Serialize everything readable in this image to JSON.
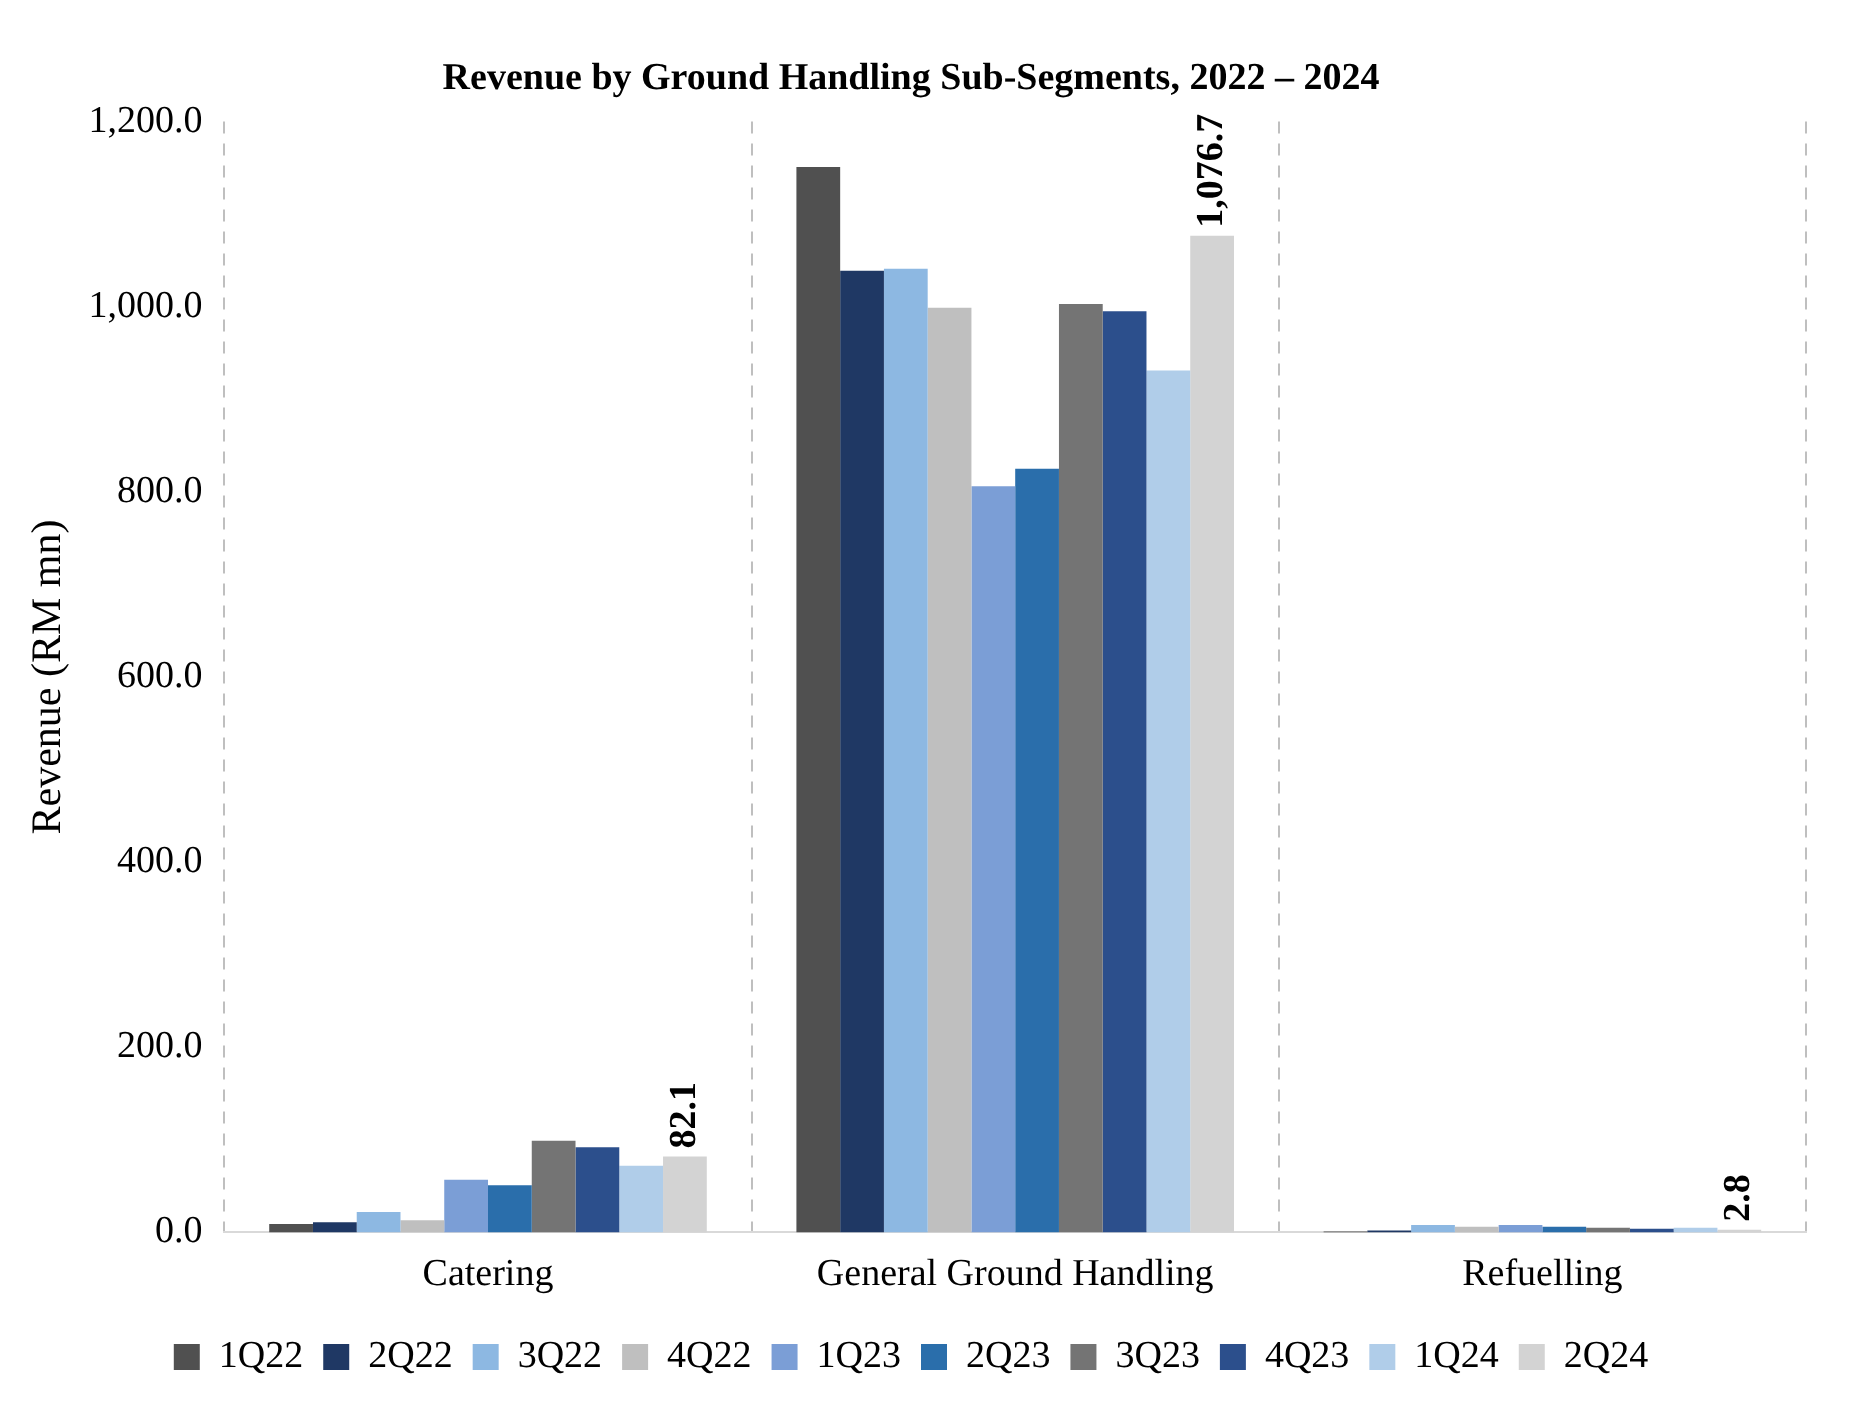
{
  "chart_data": {
    "type": "bar",
    "title": "Revenue by Ground Handling Sub-Segments, 2022 – 2024",
    "ylabel": "Revenue (RM mn)",
    "categories": [
      "Catering",
      "General Ground Handling",
      "Refuelling"
    ],
    "series": [
      {
        "name": "1Q22",
        "color": "#505050",
        "values": [
          9,
          1151,
          1
        ]
      },
      {
        "name": "2Q22",
        "color": "#1f3864",
        "values": [
          11,
          1039,
          2
        ]
      },
      {
        "name": "3Q22",
        "color": "#8db8e2",
        "values": [
          22,
          1041,
          8
        ]
      },
      {
        "name": "4Q22",
        "color": "#bfbfbf",
        "values": [
          13,
          999,
          6
        ]
      },
      {
        "name": "1Q23",
        "color": "#7b9ed6",
        "values": [
          57,
          806,
          8
        ]
      },
      {
        "name": "2Q23",
        "color": "#2a6eab",
        "values": [
          51,
          825,
          6
        ]
      },
      {
        "name": "3Q23",
        "color": "#747474",
        "values": [
          99,
          1003,
          5
        ]
      },
      {
        "name": "4Q23",
        "color": "#2c4f8c",
        "values": [
          92,
          995,
          4
        ]
      },
      {
        "name": "1Q24",
        "color": "#b0cde9",
        "values": [
          72,
          931,
          5
        ]
      },
      {
        "name": "2Q24",
        "color": "#d3d3d3",
        "values": [
          82.1,
          1076.7,
          2.8
        ],
        "value_labels": [
          "82.1",
          "1,076.7",
          "2.8"
        ]
      }
    ],
    "ylim": [
      0,
      1200
    ],
    "yticks": [
      {
        "value": 0,
        "label": "0.0"
      },
      {
        "value": 200,
        "label": "200.0"
      },
      {
        "value": 400,
        "label": "400.0"
      },
      {
        "value": 600,
        "label": "600.0"
      },
      {
        "value": 800,
        "label": "800.0"
      },
      {
        "value": 1000,
        "label": "1,000.0"
      },
      {
        "value": 1200,
        "label": "1,200.0"
      }
    ],
    "legend": "bottom"
  }
}
